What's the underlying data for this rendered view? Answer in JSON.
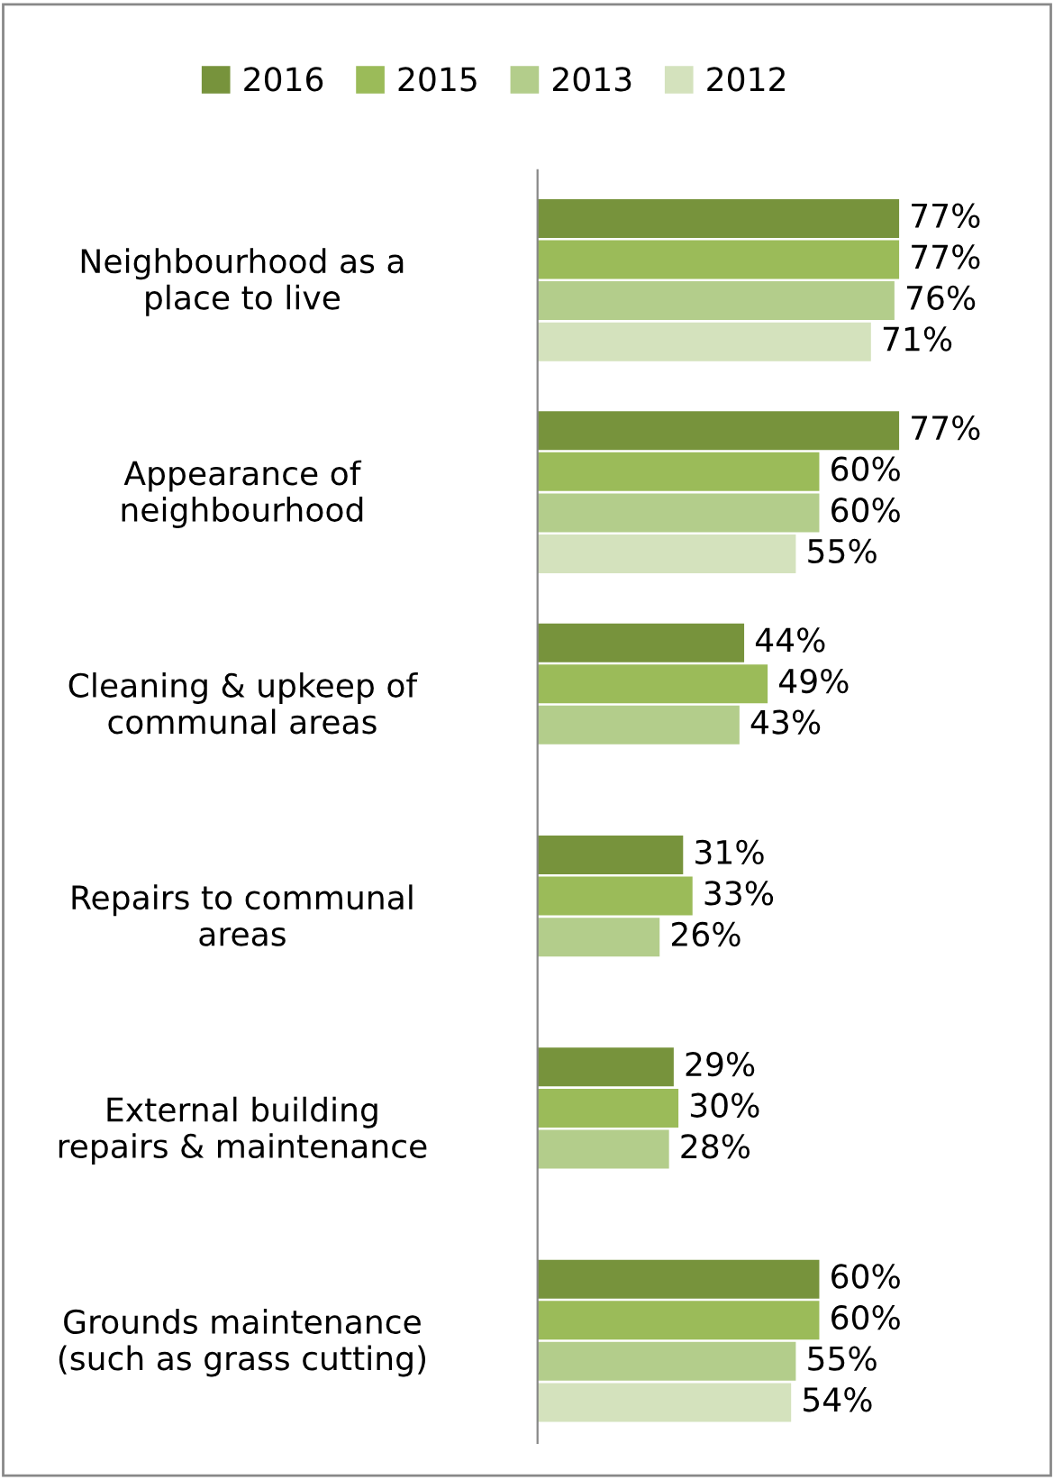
{
  "chart_data": {
    "type": "bar",
    "orientation": "horizontal",
    "categories": [
      "Neighbourhood as a\nplace to live",
      "Appearance of\nneighbourhood",
      "Cleaning & upkeep of\ncommunal areas",
      "Repairs to communal\nareas",
      "External building\nrepairs & maintenance",
      "Grounds maintenance\n(such as grass cutting)"
    ],
    "series": [
      {
        "name": "2016",
        "color": "#77933c",
        "values": [
          77,
          77,
          44,
          31,
          29,
          60
        ],
        "value_labels": [
          "77%",
          "77%",
          "44%",
          "31%",
          "29%",
          "60%"
        ]
      },
      {
        "name": "2015",
        "color": "#9bbb59",
        "values": [
          77,
          60,
          49,
          33,
          30,
          60
        ],
        "value_labels": [
          "77%",
          "60%",
          "49%",
          "33%",
          "30%",
          "60%"
        ]
      },
      {
        "name": "2013",
        "color": "#b3cd8b",
        "values": [
          76,
          60,
          43,
          26,
          28,
          55
        ],
        "value_labels": [
          "76%",
          "60%",
          "43%",
          "26%",
          "28%",
          "55%"
        ]
      },
      {
        "name": "2012",
        "color": "#d4e2bd",
        "values": [
          71,
          55,
          null,
          null,
          null,
          54
        ],
        "value_labels": [
          "71%",
          "55%",
          null,
          null,
          null,
          "54%"
        ]
      }
    ],
    "legend": "top",
    "grid": false
  }
}
